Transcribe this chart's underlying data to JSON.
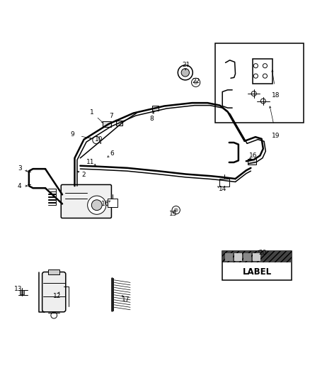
{
  "bg_color": "#ffffff",
  "line_color": "#000000",
  "fig_width": 4.38,
  "fig_height": 5.33,
  "dpi": 100
}
